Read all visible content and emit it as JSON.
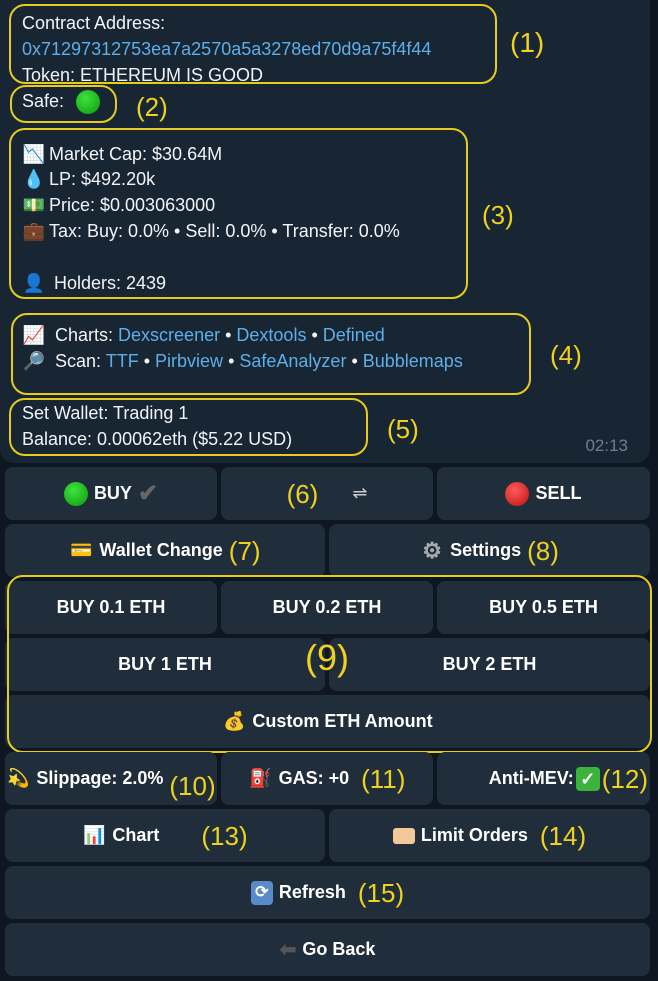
{
  "message": {
    "contract_label": "Contract Address:",
    "contract_address": "0x71297312753ea7a2570a5a3278ed70d9a75f4f44",
    "token_line": "Token:  ETHEREUM IS GOOD",
    "safe_label": "Safe:",
    "safe_status_color": "#1db81d",
    "market_cap": "Market Cap: $30.64M",
    "lp": "LP: $492.20k",
    "price": "Price: $0.003063000",
    "tax": "Tax: Buy: 0.0% • Sell: 0.0% • Transfer: 0.0%",
    "holders": "Holders: 2439",
    "charts_label": "Charts:",
    "charts_links": [
      "Dexscreener",
      "Dextools",
      "Defined"
    ],
    "scan_label": "Scan:",
    "scan_links": [
      "TTF",
      "Pirbview",
      "SafeAnalyzer",
      "Bubblemaps"
    ],
    "separator": " • ",
    "wallet": "Set Wallet: Trading 1",
    "balance": "Balance: 0.00062eth ($5.22 USD)",
    "time": "02:13"
  },
  "buttons": {
    "buy": "BUY",
    "swap": "⇌",
    "sell": "SELL",
    "wallet_change": "Wallet Change",
    "settings": "Settings",
    "buy_01": "BUY 0.1 ETH",
    "buy_02": "BUY 0.2 ETH",
    "buy_05": "BUY 0.5 ETH",
    "buy_1": "BUY 1 ETH",
    "buy_2": "BUY 2 ETH",
    "custom": "Custom ETH Amount",
    "slippage": "Slippage: 2.0%",
    "gas": "GAS: +0",
    "anti_mev": "Anti-MEV:",
    "chart": "Chart",
    "limit_orders": "Limit Orders",
    "refresh": "Refresh",
    "go_back": "Go Back"
  },
  "annotations": [
    "(1)",
    "(2)",
    "(3)",
    "(4)",
    "(5)",
    "(6)",
    "(7)",
    "(8)",
    "(9)",
    "(10)",
    "(11)",
    "(12)",
    "(13)",
    "(14)",
    "(15)"
  ],
  "colors": {
    "annotation": "#e8cc1a",
    "link": "#5eaee8",
    "button_bg": "#202d3b",
    "bubble_bg": "#182533"
  }
}
